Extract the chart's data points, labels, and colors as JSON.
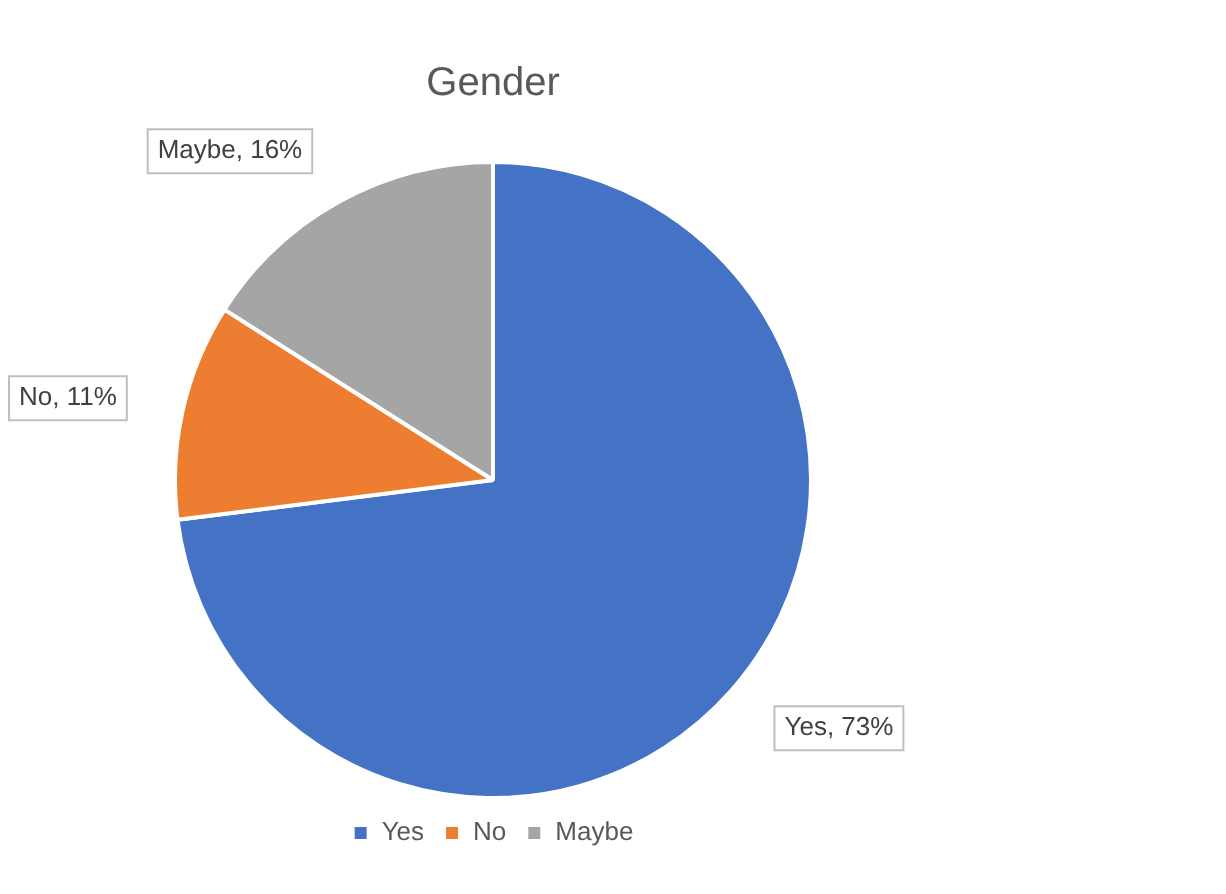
{
  "chart_data": {
    "type": "pie",
    "title": "Gender",
    "categories": [
      "Yes",
      "No",
      "Maybe"
    ],
    "values": [
      73,
      11,
      16
    ],
    "colors": [
      "#4472c4",
      "#ed7d31",
      "#a5a5a5"
    ],
    "value_labels": [
      "Yes, 73%",
      "No, 11%",
      "Maybe, 16%"
    ],
    "legend": "bottom"
  }
}
